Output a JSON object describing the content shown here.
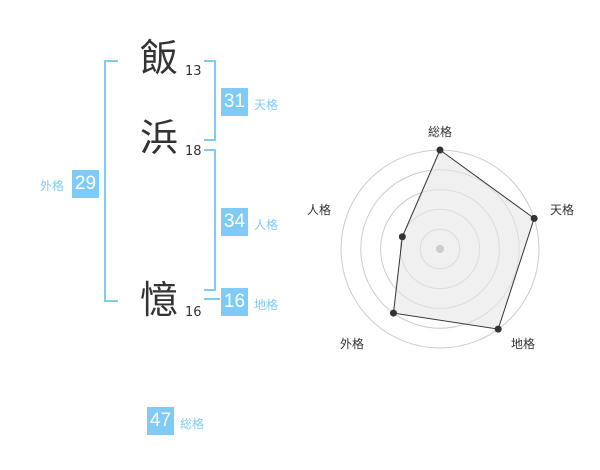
{
  "characters": [
    {
      "char": "飯",
      "strokes": "13"
    },
    {
      "char": "浜",
      "strokes": "18"
    },
    {
      "char": "憶",
      "strokes": "16"
    }
  ],
  "scores": {
    "tenkaku": {
      "value": "31",
      "label": "天格"
    },
    "jinkaku": {
      "value": "34",
      "label": "人格"
    },
    "chikaku": {
      "value": "16",
      "label": "地格"
    },
    "gaikaku": {
      "value": "29",
      "label": "外格"
    },
    "soukaku": {
      "value": "47",
      "label": "総格"
    }
  },
  "colors": {
    "accent": "#7fcbf5",
    "radar_fill": "#f0f0f0",
    "radar_line": "#333333"
  },
  "chart_data": {
    "type": "radar",
    "axes": [
      "総格",
      "天格",
      "地格",
      "外格",
      "人格"
    ],
    "values": [
      5,
      5,
      5,
      4,
      2
    ],
    "range": [
      0,
      5
    ],
    "rings": 5
  }
}
